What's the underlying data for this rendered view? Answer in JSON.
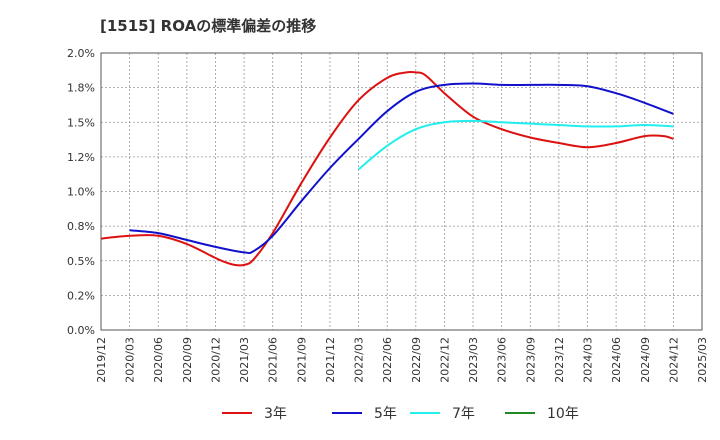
{
  "chart_data": {
    "type": "line",
    "title": "[1515]  ROAの標準偏差の推移",
    "xlabel": "",
    "ylabel": "",
    "x_ticks": [
      "2019/12",
      "2020/03",
      "2020/06",
      "2020/09",
      "2020/12",
      "2021/03",
      "2021/06",
      "2021/09",
      "2021/12",
      "2022/03",
      "2022/06",
      "2022/09",
      "2022/12",
      "2023/03",
      "2023/06",
      "2023/09",
      "2023/12",
      "2024/03",
      "2024/06",
      "2024/09",
      "2024/12",
      "2025/03"
    ],
    "y_ticks": [
      "0.0%",
      "0.25%",
      "0.5%",
      "0.75%",
      "1.0%",
      "1.25%",
      "1.5%",
      "1.75%",
      "2.0%"
    ],
    "y_tick_labels": [
      "0.0%",
      "0.2%",
      "0.5%",
      "0.8%",
      "1.0%",
      "1.2%",
      "1.5%",
      "1.8%",
      "2.0%"
    ],
    "ylim": [
      0,
      2.0
    ],
    "grid": true,
    "legend_position": "bottom",
    "series": [
      {
        "name": "3年",
        "color": "#dd1111",
        "x": [
          "2019/12",
          "2020/03",
          "2020/06",
          "2020/09",
          "2020/12",
          "2021/01",
          "2021/02",
          "2021/03",
          "2021/04",
          "2021/06",
          "2021/09",
          "2021/12",
          "2022/03",
          "2022/06",
          "2022/08",
          "2022/09",
          "2022/10",
          "2022/12",
          "2023/03",
          "2023/06",
          "2023/09",
          "2023/12",
          "2024/03",
          "2024/06",
          "2024/09",
          "2024/11",
          "2024/12"
        ],
        "values": [
          0.66,
          0.68,
          0.68,
          0.62,
          0.52,
          0.49,
          0.47,
          0.47,
          0.51,
          0.7,
          1.06,
          1.39,
          1.66,
          1.82,
          1.86,
          1.86,
          1.84,
          1.71,
          1.54,
          1.45,
          1.39,
          1.35,
          1.32,
          1.35,
          1.4,
          1.4,
          1.38
        ]
      },
      {
        "name": "5年",
        "color": "#1111cc",
        "x": [
          "2020/03",
          "2020/06",
          "2020/09",
          "2020/12",
          "2021/03",
          "2021/04",
          "2021/06",
          "2021/09",
          "2021/12",
          "2022/03",
          "2022/06",
          "2022/09",
          "2022/12",
          "2023/03",
          "2023/06",
          "2023/09",
          "2023/12",
          "2024/03",
          "2024/06",
          "2024/09",
          "2024/12"
        ],
        "values": [
          0.72,
          0.7,
          0.65,
          0.6,
          0.56,
          0.57,
          0.68,
          0.93,
          1.17,
          1.38,
          1.58,
          1.72,
          1.77,
          1.78,
          1.77,
          1.77,
          1.77,
          1.76,
          1.71,
          1.64,
          1.56
        ]
      },
      {
        "name": "7年",
        "color": "#22eeee",
        "x": [
          "2022/03",
          "2022/06",
          "2022/09",
          "2022/12",
          "2023/03",
          "2023/06",
          "2023/09",
          "2023/12",
          "2024/03",
          "2024/06",
          "2024/09",
          "2024/12"
        ],
        "values": [
          1.16,
          1.33,
          1.45,
          1.5,
          1.51,
          1.5,
          1.49,
          1.48,
          1.47,
          1.47,
          1.48,
          1.47
        ]
      },
      {
        "name": "10年",
        "color": "#228822",
        "x": [],
        "values": []
      }
    ]
  }
}
